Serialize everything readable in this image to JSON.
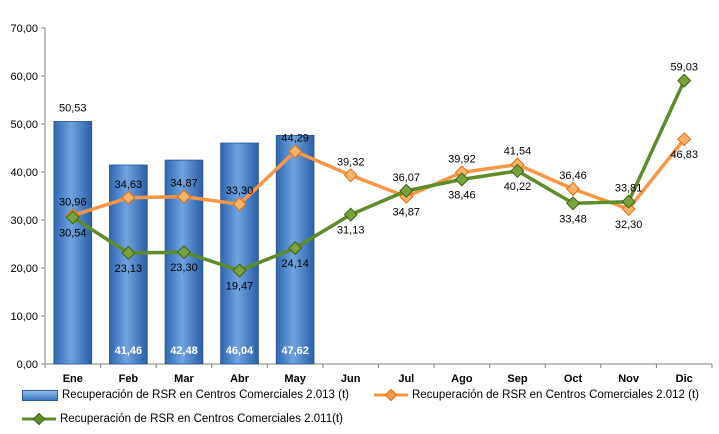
{
  "chart_data": {
    "type": "bar+line",
    "categories": [
      "Ene",
      "Feb",
      "Mar",
      "Abr",
      "May",
      "Jun",
      "Jul",
      "Ago",
      "Sep",
      "Oct",
      "Nov",
      "Dic"
    ],
    "ylim": [
      0,
      70
    ],
    "yticks": [
      "0,00",
      "10,00",
      "20,00",
      "30,00",
      "40,00",
      "50,00",
      "60,00",
      "70,00"
    ],
    "grid": false,
    "legend_position": "bottom",
    "series": [
      {
        "name": "Recuperación de RSR en Centros Comerciales 2.013 (t)",
        "kind": "bar",
        "color": "#3a78c7",
        "values": [
          50.53,
          41.46,
          42.48,
          46.04,
          47.62,
          null,
          null,
          null,
          null,
          null,
          null,
          null
        ],
        "labels": [
          "50,53",
          "41,46",
          "42,48",
          "46,04",
          "47,62",
          "",
          "",
          "",
          "",
          "",
          "",
          ""
        ]
      },
      {
        "name": "Recuperación de RSR en Centros Comerciales 2.012 (t)",
        "kind": "line",
        "color": "#f79646",
        "values": [
          30.96,
          34.63,
          34.87,
          33.3,
          44.29,
          39.32,
          34.87,
          39.92,
          41.54,
          36.46,
          32.3,
          46.83
        ],
        "labels": [
          "30,96",
          "34,63",
          "34,87",
          "33,30",
          "44,29",
          "39,32",
          "34,87",
          "39,92",
          "41,54",
          "36,46",
          "32,30",
          "46,83"
        ]
      },
      {
        "name": "Recuperación de RSR en Centros Comerciales 2.011(t)",
        "kind": "line",
        "color": "#5e8c2a",
        "values": [
          30.54,
          23.13,
          23.3,
          19.47,
          24.14,
          31.13,
          36.07,
          38.46,
          40.22,
          33.48,
          33.81,
          59.03
        ],
        "labels": [
          "30,54",
          "23,13",
          "23,30",
          "19,47",
          "24,14",
          "31,13",
          "36,07",
          "38,46",
          "40,22",
          "33,48",
          "33,81",
          "59,03"
        ]
      }
    ]
  }
}
